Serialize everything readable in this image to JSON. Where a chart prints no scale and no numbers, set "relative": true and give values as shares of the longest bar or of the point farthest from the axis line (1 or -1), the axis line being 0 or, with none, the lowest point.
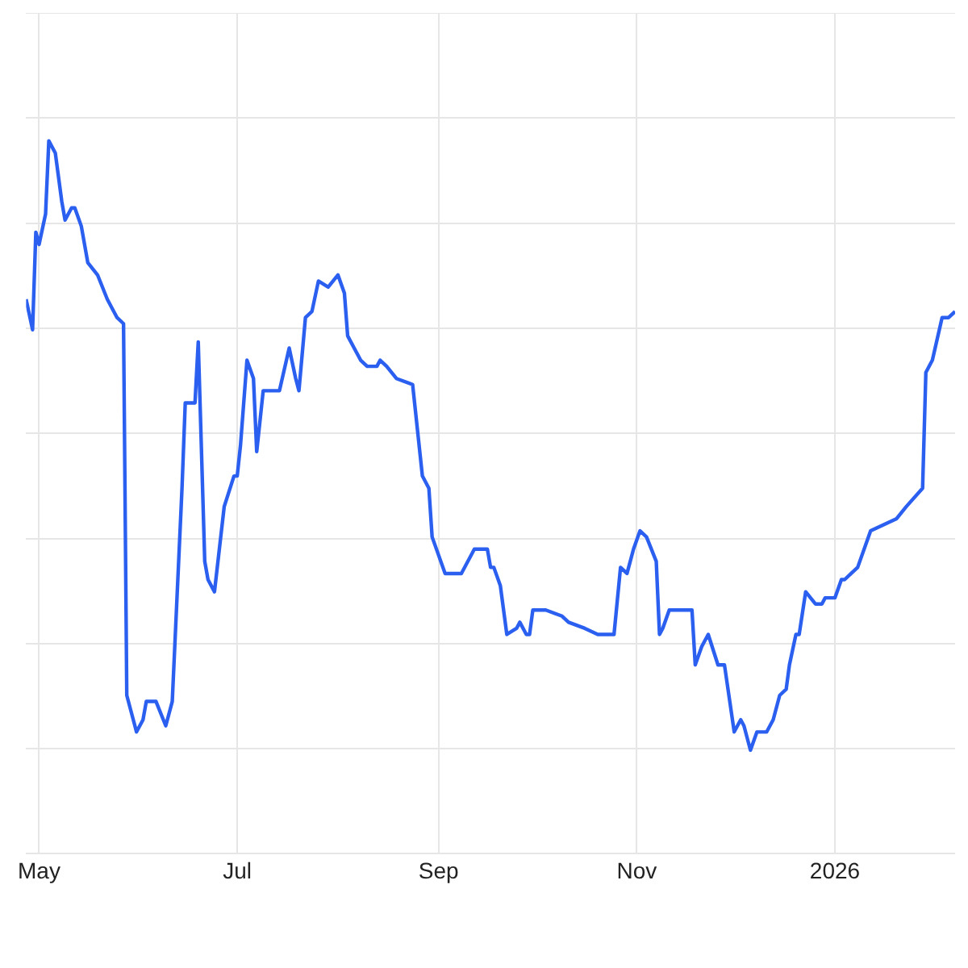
{
  "chart_data": {
    "type": "line",
    "relative": true,
    "grid": true,
    "legend": false,
    "marker": "none",
    "line_style": "solid",
    "xlim": [
      "2025-04-27",
      "2026-02-07"
    ],
    "xticks": [
      {
        "value": "2025-05-01",
        "label": "May"
      },
      {
        "value": "2025-07-01",
        "label": "Jul"
      },
      {
        "value": "2025-09-01",
        "label": "Sep"
      },
      {
        "value": "2025-11-01",
        "label": "Nov"
      },
      {
        "value": "2026-01-01",
        "label": "2026"
      }
    ],
    "x": [
      "2025-04-27",
      "2025-04-29",
      "2025-04-30",
      "2025-05-01",
      "2025-05-03",
      "2025-05-04",
      "2025-05-06",
      "2025-05-08",
      "2025-05-09",
      "2025-05-11",
      "2025-05-12",
      "2025-05-14",
      "2025-05-16",
      "2025-05-19",
      "2025-05-22",
      "2025-05-25",
      "2025-05-27",
      "2025-05-28",
      "2025-05-30",
      "2025-05-31",
      "2025-06-02",
      "2025-06-03",
      "2025-06-06",
      "2025-06-09",
      "2025-06-11",
      "2025-06-14",
      "2025-06-15",
      "2025-06-18",
      "2025-06-19",
      "2025-06-21",
      "2025-06-22",
      "2025-06-24",
      "2025-06-27",
      "2025-06-30",
      "2025-07-01",
      "2025-07-02",
      "2025-07-04",
      "2025-07-06",
      "2025-07-07",
      "2025-07-09",
      "2025-07-14",
      "2025-07-17",
      "2025-07-19",
      "2025-07-20",
      "2025-07-22",
      "2025-07-24",
      "2025-07-26",
      "2025-07-29",
      "2025-08-01",
      "2025-08-03",
      "2025-08-04",
      "2025-08-06",
      "2025-08-08",
      "2025-08-10",
      "2025-08-13",
      "2025-08-14",
      "2025-08-16",
      "2025-08-19",
      "2025-08-24",
      "2025-08-27",
      "2025-08-29",
      "2025-08-30",
      "2025-09-03",
      "2025-09-05",
      "2025-09-08",
      "2025-09-12",
      "2025-09-16",
      "2025-09-17",
      "2025-09-18",
      "2025-09-20",
      "2025-09-22",
      "2025-09-25",
      "2025-09-26",
      "2025-09-28",
      "2025-09-29",
      "2025-09-30",
      "2025-10-04",
      "2025-10-09",
      "2025-10-11",
      "2025-10-16",
      "2025-10-20",
      "2025-10-25",
      "2025-10-27",
      "2025-10-29",
      "2025-10-31",
      "2025-11-02",
      "2025-11-04",
      "2025-11-07",
      "2025-11-08",
      "2025-11-09",
      "2025-11-11",
      "2025-11-13",
      "2025-11-18",
      "2025-11-19",
      "2025-11-21",
      "2025-11-23",
      "2025-11-26",
      "2025-11-28",
      "2025-12-01",
      "2025-12-03",
      "2025-12-04",
      "2025-12-06",
      "2025-12-08",
      "2025-12-11",
      "2025-12-13",
      "2025-12-15",
      "2025-12-17",
      "2025-12-18",
      "2025-12-20",
      "2025-12-21",
      "2025-12-23",
      "2025-12-26",
      "2025-12-28",
      "2025-12-29",
      "2026-01-01",
      "2026-01-03",
      "2026-01-04",
      "2026-01-06",
      "2026-01-08",
      "2026-01-12",
      "2026-01-16",
      "2026-01-20",
      "2026-01-23",
      "2026-01-28",
      "2026-01-29",
      "2026-01-31",
      "2026-02-03",
      "2026-02-05",
      "2026-02-07"
    ],
    "series": [
      {
        "color": "#2b5ff0",
        "values": [
          0.74,
          0.69,
          0.85,
          0.83,
          0.88,
          1.0,
          0.98,
          0.9,
          0.87,
          0.89,
          0.89,
          0.86,
          0.8,
          0.78,
          0.74,
          0.71,
          0.7,
          0.09,
          0.05,
          0.03,
          0.05,
          0.08,
          0.08,
          0.04,
          0.08,
          0.43,
          0.57,
          0.57,
          0.67,
          0.31,
          0.28,
          0.26,
          0.4,
          0.45,
          0.45,
          0.5,
          0.64,
          0.61,
          0.49,
          0.59,
          0.59,
          0.66,
          0.61,
          0.59,
          0.71,
          0.72,
          0.77,
          0.76,
          0.78,
          0.75,
          0.68,
          0.66,
          0.64,
          0.63,
          0.63,
          0.64,
          0.63,
          0.61,
          0.6,
          0.45,
          0.43,
          0.35,
          0.29,
          0.29,
          0.29,
          0.33,
          0.33,
          0.3,
          0.3,
          0.27,
          0.19,
          0.2,
          0.21,
          0.19,
          0.19,
          0.23,
          0.23,
          0.22,
          0.21,
          0.2,
          0.19,
          0.19,
          0.3,
          0.29,
          0.33,
          0.36,
          0.35,
          0.31,
          0.19,
          0.2,
          0.23,
          0.23,
          0.23,
          0.14,
          0.17,
          0.19,
          0.14,
          0.14,
          0.03,
          0.05,
          0.04,
          0.0,
          0.03,
          0.03,
          0.05,
          0.09,
          0.1,
          0.14,
          0.19,
          0.19,
          0.26,
          0.24,
          0.24,
          0.25,
          0.25,
          0.28,
          0.28,
          0.29,
          0.3,
          0.36,
          0.37,
          0.38,
          0.4,
          0.43,
          0.62,
          0.64,
          0.71,
          0.71,
          0.72
        ]
      }
    ]
  }
}
